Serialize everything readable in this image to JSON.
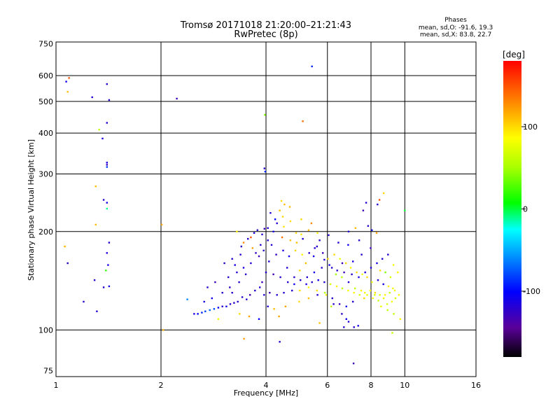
{
  "header": {
    "title_line1": "Tromsø 20171018 21:20:00–21:21:43",
    "title_line2": "RwPretec (8p)",
    "stats_title": "Phases",
    "stats_line1": "mean, sd,O: -91.6, 19.3",
    "stats_line2": "mean, sd,X: 83.8, 22.7"
  },
  "colorbar": {
    "label": "[deg]",
    "ticks": [
      "100",
      "0",
      "-100"
    ],
    "tick_values": [
      100,
      0,
      -100
    ],
    "range": [
      -180,
      180
    ]
  },
  "chart_data": {
    "type": "scatter",
    "xscale": "log",
    "yscale": "log",
    "xlim": [
      1,
      16
    ],
    "ylim": [
      72,
      760
    ],
    "xlabel": "Frequency [MHz]",
    "ylabel": "Stationary phase Virtual Height [km]",
    "xticks": [
      1,
      2,
      4,
      6,
      8,
      10,
      16
    ],
    "yticks": [
      75,
      100,
      200,
      300,
      400,
      500,
      600,
      750
    ],
    "xgrid": [
      2,
      4,
      6,
      8,
      10
    ],
    "ygrid": [
      100,
      200,
      300,
      400,
      500,
      600
    ],
    "grid": true,
    "colors": {
      "grid": "#000000",
      "axes": "#000000"
    },
    "points": [
      [
        1.09,
        590,
        150
      ],
      [
        1.07,
        575,
        -110
      ],
      [
        1.08,
        535,
        110
      ],
      [
        1.27,
        515,
        -120
      ],
      [
        1.4,
        565,
        -115
      ],
      [
        1.42,
        505,
        -120
      ],
      [
        1.4,
        430,
        -115
      ],
      [
        1.33,
        410,
        60
      ],
      [
        1.36,
        385,
        -115
      ],
      [
        1.4,
        325,
        -110
      ],
      [
        1.4,
        320,
        -130
      ],
      [
        1.4,
        315,
        -80
      ],
      [
        1.3,
        275,
        110
      ],
      [
        1.37,
        250,
        -120
      ],
      [
        1.4,
        245,
        -110
      ],
      [
        1.4,
        235,
        -10
      ],
      [
        1.3,
        210,
        110
      ],
      [
        1.42,
        185,
        -120
      ],
      [
        1.4,
        172,
        -115
      ],
      [
        1.41,
        158,
        -110
      ],
      [
        1.39,
        152,
        20
      ],
      [
        1.29,
        142,
        -120
      ],
      [
        1.42,
        136,
        -110
      ],
      [
        1.37,
        135,
        -120
      ],
      [
        1.2,
        122,
        -120
      ],
      [
        1.31,
        114,
        -120
      ],
      [
        1.08,
        160,
        -120
      ],
      [
        1.06,
        180,
        115
      ],
      [
        2.01,
        210,
        120
      ],
      [
        2.03,
        100,
        115
      ],
      [
        2.22,
        510,
        -130
      ],
      [
        2.38,
        124,
        -60
      ],
      [
        3.96,
        312,
        -120
      ],
      [
        3.98,
        305,
        -90
      ],
      [
        3.97,
        455,
        40
      ],
      [
        5.42,
        640,
        -90
      ],
      [
        5.1,
        435,
        140
      ],
      [
        3.46,
        94,
        120
      ],
      [
        4.38,
        92,
        -120
      ],
      [
        7.13,
        79,
        -130
      ],
      [
        6.69,
        102,
        -120
      ],
      [
        9.21,
        98,
        60
      ],
      [
        10.0,
        232,
        0
      ],
      [
        8.35,
        242,
        -120
      ],
      [
        8.46,
        250,
        150
      ],
      [
        8.7,
        262,
        100
      ],
      [
        7.6,
        232,
        -130
      ],
      [
        7.75,
        245,
        -120
      ],
      [
        4.43,
        248,
        100
      ],
      [
        4.52,
        242,
        110
      ],
      [
        4.68,
        238,
        110
      ],
      [
        4.38,
        232,
        110
      ],
      [
        4.47,
        222,
        100
      ],
      [
        4.7,
        215,
        100
      ],
      [
        4.5,
        207,
        95
      ],
      [
        4.88,
        198,
        100
      ],
      [
        5.05,
        196,
        95
      ],
      [
        5.3,
        202,
        110
      ],
      [
        5.62,
        198,
        90
      ],
      [
        4.3,
        212,
        -120
      ],
      [
        4.05,
        205,
        -120
      ],
      [
        3.96,
        204,
        -130
      ],
      [
        4.2,
        200,
        -110
      ],
      [
        4.12,
        228,
        -120
      ],
      [
        4.25,
        218,
        -100
      ],
      [
        5.05,
        218,
        100
      ],
      [
        5.4,
        212,
        130
      ],
      [
        5.7,
        188,
        -120
      ],
      [
        5.52,
        178,
        -120
      ],
      [
        6.05,
        195,
        -120
      ],
      [
        6.45,
        185,
        -120
      ],
      [
        6.88,
        182,
        -110
      ],
      [
        7.4,
        188,
        -120
      ],
      [
        7.98,
        178,
        -130
      ],
      [
        7.52,
        170,
        -120
      ],
      [
        7.1,
        162,
        -110
      ],
      [
        6.62,
        160,
        -130
      ],
      [
        6.18,
        155,
        -120
      ],
      [
        5.88,
        164,
        -120
      ],
      [
        5.48,
        168,
        -110
      ],
      [
        5.2,
        160,
        110
      ],
      [
        5.0,
        152,
        100
      ],
      [
        4.82,
        145,
        -120
      ],
      [
        4.6,
        155,
        -120
      ],
      [
        4.4,
        145,
        -120
      ],
      [
        4.2,
        148,
        -130
      ],
      [
        4.0,
        150,
        -120
      ],
      [
        3.9,
        140,
        -130
      ],
      [
        3.84,
        135,
        -120
      ],
      [
        3.72,
        132,
        -120
      ],
      [
        3.6,
        128,
        -130
      ],
      [
        3.52,
        124,
        -120
      ],
      [
        3.42,
        126,
        -120
      ],
      [
        3.32,
        122,
        -120
      ],
      [
        3.24,
        121,
        -120
      ],
      [
        3.16,
        120,
        -120
      ],
      [
        3.08,
        118,
        -110
      ],
      [
        3.0,
        118,
        -120
      ],
      [
        2.92,
        117,
        -100
      ],
      [
        2.84,
        116,
        -80
      ],
      [
        2.76,
        115,
        -70
      ],
      [
        2.68,
        114,
        -80
      ],
      [
        2.62,
        113,
        -90
      ],
      [
        2.55,
        112,
        -100
      ],
      [
        2.49,
        112,
        -110
      ],
      [
        3.2,
        130,
        -120
      ],
      [
        3.35,
        140,
        -120
      ],
      [
        3.5,
        148,
        -120
      ],
      [
        3.62,
        160,
        -120
      ],
      [
        3.74,
        172,
        -125
      ],
      [
        3.86,
        182,
        -120
      ],
      [
        3.45,
        155,
        -115
      ],
      [
        3.3,
        150,
        -120
      ],
      [
        3.15,
        135,
        -125
      ],
      [
        3.38,
        170,
        -120
      ],
      [
        3.55,
        190,
        -120
      ],
      [
        3.7,
        198,
        -115
      ],
      [
        3.3,
        200,
        90
      ],
      [
        3.66,
        178,
        120
      ],
      [
        3.45,
        185,
        130
      ],
      [
        3.82,
        168,
        -130
      ],
      [
        3.94,
        175,
        -120
      ],
      [
        4.08,
        162,
        -120
      ],
      [
        4.28,
        170,
        -125
      ],
      [
        4.48,
        175,
        -115
      ],
      [
        4.66,
        168,
        -110
      ],
      [
        4.86,
        175,
        100
      ],
      [
        5.08,
        170,
        90
      ],
      [
        5.32,
        172,
        -120
      ],
      [
        5.6,
        180,
        -120
      ],
      [
        5.82,
        172,
        -130
      ],
      [
        6.02,
        165,
        100
      ],
      [
        6.28,
        170,
        100
      ],
      [
        6.52,
        165,
        80
      ],
      [
        6.78,
        160,
        100
      ],
      [
        7.0,
        155,
        90
      ],
      [
        7.28,
        150,
        100
      ],
      [
        7.55,
        148,
        80
      ],
      [
        7.8,
        145,
        100
      ],
      [
        8.05,
        140,
        80
      ],
      [
        8.38,
        142,
        -120
      ],
      [
        8.68,
        138,
        -110
      ],
      [
        8.98,
        136,
        90
      ],
      [
        9.25,
        134,
        80
      ],
      [
        6.35,
        148,
        50
      ],
      [
        6.6,
        145,
        60
      ],
      [
        6.9,
        140,
        -120
      ],
      [
        7.2,
        134,
        60
      ],
      [
        7.5,
        132,
        90
      ],
      [
        7.8,
        128,
        80
      ],
      [
        8.1,
        125,
        80
      ],
      [
        8.4,
        123,
        60
      ],
      [
        8.7,
        125,
        80
      ],
      [
        8.2,
        128,
        70
      ],
      [
        7.65,
        125,
        100
      ],
      [
        7.1,
        122,
        -120
      ],
      [
        6.8,
        118,
        -110
      ],
      [
        6.5,
        120,
        -130
      ],
      [
        6.2,
        125,
        -120
      ],
      [
        5.9,
        130,
        50
      ],
      [
        5.6,
        132,
        100
      ],
      [
        5.3,
        135,
        90
      ],
      [
        5.0,
        132,
        100
      ],
      [
        4.75,
        132,
        -120
      ],
      [
        4.5,
        130,
        -120
      ],
      [
        4.3,
        128,
        -120
      ],
      [
        4.1,
        130,
        -130
      ],
      [
        3.95,
        128,
        -120
      ],
      [
        4.05,
        118,
        -120
      ],
      [
        4.22,
        116,
        110
      ],
      [
        4.55,
        118,
        120
      ],
      [
        4.98,
        122,
        100
      ],
      [
        5.3,
        125,
        110
      ],
      [
        5.62,
        128,
        -120
      ],
      [
        5.95,
        128,
        80
      ],
      [
        6.25,
        120,
        -120
      ],
      [
        6.6,
        112,
        -120
      ],
      [
        6.9,
        106,
        -120
      ],
      [
        7.15,
        102,
        -120
      ],
      [
        7.35,
        103,
        -110
      ],
      [
        6.8,
        108,
        -110
      ],
      [
        5.7,
        105,
        110
      ],
      [
        6.15,
        118,
        60
      ],
      [
        3.36,
        112,
        100
      ],
      [
        3.58,
        110,
        120
      ],
      [
        3.82,
        108,
        -100
      ],
      [
        2.92,
        108,
        80
      ],
      [
        4.36,
        110,
        120
      ],
      [
        8.55,
        118,
        80
      ],
      [
        8.92,
        115,
        60
      ],
      [
        9.3,
        112,
        60
      ],
      [
        9.7,
        108,
        90
      ],
      [
        7.85,
        208,
        -120
      ],
      [
        8.05,
        202,
        -110
      ],
      [
        8.3,
        198,
        120
      ],
      [
        6.9,
        200,
        -120
      ],
      [
        7.22,
        205,
        110
      ],
      [
        4.15,
        182,
        -120
      ],
      [
        4.05,
        188,
        -120
      ],
      [
        4.45,
        192,
        140
      ],
      [
        4.7,
        188,
        110
      ],
      [
        4.9,
        185,
        110
      ],
      [
        5.1,
        190,
        -120
      ],
      [
        3.62,
        192,
        150
      ],
      [
        3.78,
        202,
        -120
      ],
      [
        3.9,
        196,
        -120
      ],
      [
        3.2,
        165,
        -120
      ],
      [
        3.04,
        160,
        -120
      ],
      [
        2.86,
        140,
        -130
      ],
      [
        2.72,
        135,
        -120
      ],
      [
        3.0,
        130,
        -120
      ],
      [
        2.8,
        125,
        -110
      ],
      [
        2.66,
        122,
        -110
      ],
      [
        3.12,
        145,
        -120
      ],
      [
        3.26,
        158,
        -110
      ],
      [
        3.4,
        180,
        -120
      ],
      [
        5.25,
        145,
        -120
      ],
      [
        5.5,
        150,
        -110
      ],
      [
        5.78,
        155,
        -120
      ],
      [
        6.08,
        158,
        -110
      ],
      [
        6.4,
        152,
        -120
      ],
      [
        6.7,
        150,
        -130
      ],
      [
        7.05,
        148,
        -120
      ],
      [
        7.38,
        145,
        -110
      ],
      [
        7.7,
        150,
        -120
      ],
      [
        8.0,
        155,
        -120
      ],
      [
        8.32,
        160,
        -110
      ],
      [
        8.62,
        165,
        -120
      ],
      [
        8.95,
        170,
        -120
      ],
      [
        9.28,
        158,
        80
      ],
      [
        9.55,
        150,
        90
      ],
      [
        9.1,
        145,
        70
      ],
      [
        8.8,
        150,
        40
      ],
      [
        8.5,
        152,
        100
      ],
      [
        4.62,
        140,
        -120
      ],
      [
        4.82,
        138,
        -110
      ],
      [
        5.02,
        142,
        -120
      ],
      [
        5.22,
        138,
        -115
      ],
      [
        5.42,
        140,
        -120
      ],
      [
        5.65,
        142,
        -110
      ],
      [
        5.88,
        140,
        -120
      ],
      [
        6.12,
        138,
        70
      ],
      [
        6.38,
        136,
        90
      ],
      [
        6.62,
        134,
        60
      ],
      [
        6.88,
        132,
        80
      ],
      [
        7.15,
        130,
        90
      ],
      [
        7.42,
        128,
        70
      ],
      [
        7.68,
        130,
        80
      ],
      [
        7.96,
        132,
        90
      ],
      [
        8.22,
        130,
        100
      ],
      [
        8.48,
        128,
        70
      ],
      [
        8.78,
        128,
        90
      ],
      [
        9.05,
        130,
        60
      ],
      [
        9.36,
        132,
        80
      ],
      [
        9.62,
        128,
        90
      ],
      [
        9.4,
        125,
        70
      ],
      [
        9.18,
        122,
        80
      ],
      [
        8.9,
        120,
        70
      ]
    ]
  }
}
